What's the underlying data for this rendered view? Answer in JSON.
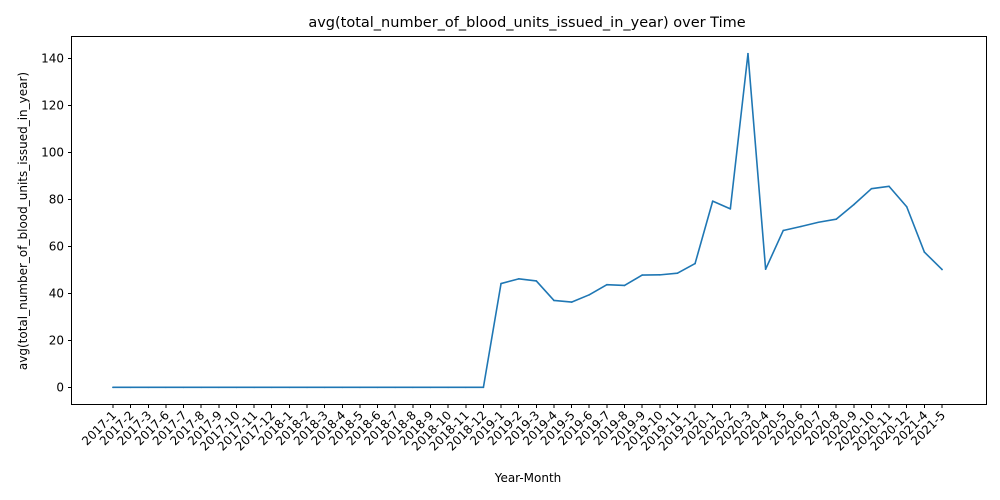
{
  "chart_data": {
    "type": "line",
    "title": "avg(total_number_of_blood_units_issued_in_year) over Time",
    "xlabel": "Year-Month",
    "ylabel": "avg(total_number_of_blood_units_issued_in_year)",
    "categories": [
      "2017-1",
      "2017-2",
      "2017-3",
      "2017-6",
      "2017-7",
      "2017-8",
      "2017-9",
      "2017-10",
      "2017-11",
      "2017-12",
      "2018-1",
      "2018-2",
      "2018-3",
      "2018-4",
      "2018-5",
      "2018-6",
      "2018-7",
      "2018-8",
      "2018-9",
      "2018-10",
      "2018-11",
      "2018-12",
      "2019-1",
      "2019-2",
      "2019-3",
      "2019-4",
      "2019-5",
      "2019-6",
      "2019-7",
      "2019-8",
      "2019-9",
      "2019-10",
      "2019-11",
      "2019-12",
      "2020-1",
      "2020-2",
      "2020-3",
      "2020-4",
      "2020-5",
      "2020-6",
      "2020-7",
      "2020-8",
      "2020-9",
      "2020-10",
      "2020-11",
      "2020-12",
      "2021-4",
      "2021-5"
    ],
    "series": [
      {
        "values": [
          0,
          0,
          0,
          0,
          0,
          0,
          0,
          0,
          0,
          0,
          0,
          0,
          0,
          0,
          0,
          0,
          0,
          0,
          0,
          0,
          0,
          0,
          44.2,
          46.2,
          45.3,
          37.0,
          36.3,
          39.4,
          43.7,
          43.4,
          47.8,
          47.9,
          48.6,
          52.7,
          79.3,
          76.0,
          142.1,
          50.3,
          66.8,
          68.5,
          70.3,
          71.6,
          77.8,
          84.6,
          85.6,
          76.9,
          57.6,
          50.2
        ],
        "color": "#1f77b4"
      }
    ],
    "ylim": [
      -7.1,
      149.2
    ],
    "yticks": [
      0,
      20,
      40,
      60,
      80,
      100,
      120,
      140
    ],
    "grid": false,
    "legend": "none"
  }
}
